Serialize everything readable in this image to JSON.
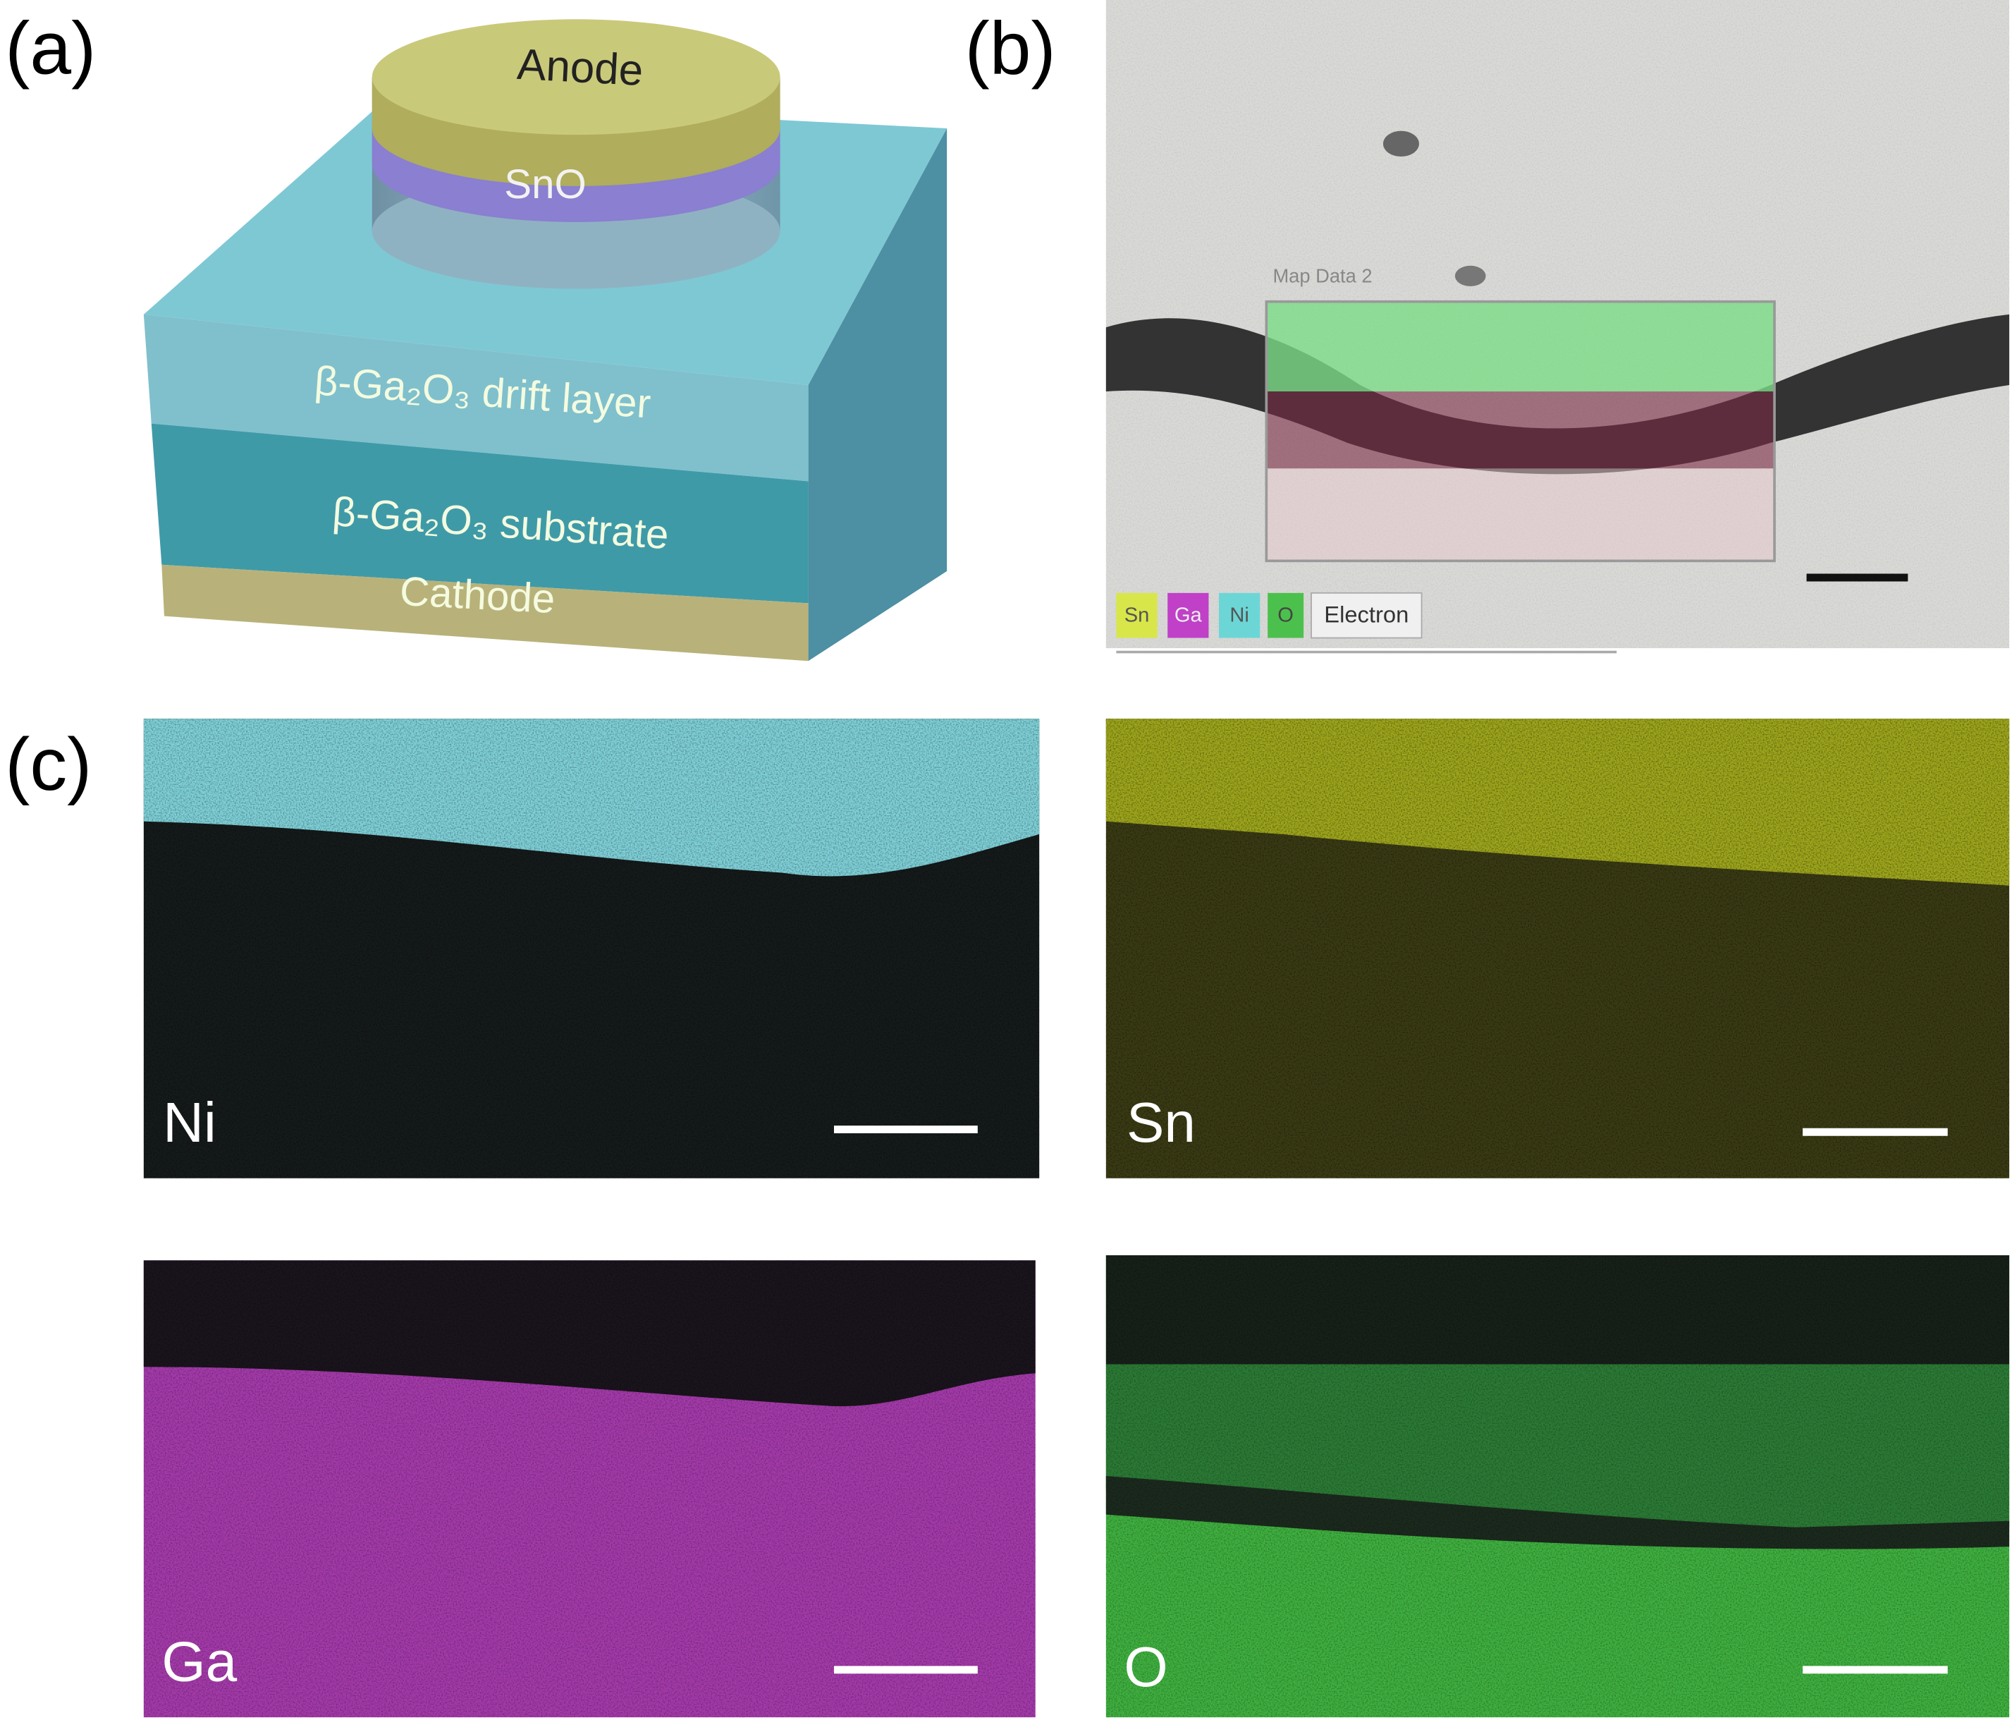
{
  "panel_a": {
    "label": "(a)",
    "layers": {
      "anode": "Anode",
      "sno": "SnO",
      "drift": "β-Ga₂O₃ drift layer",
      "substrate": "β-Ga₂O₃ substrate",
      "cathode": "Cathode"
    }
  },
  "panel_b": {
    "label": "(b)",
    "map_title": "Map Data 2",
    "legend": [
      "Sn",
      "Ga",
      "Ni",
      "O",
      "Electron"
    ]
  },
  "panel_c": {
    "label": "(c)",
    "maps": [
      "Ni",
      "Sn",
      "Ga",
      "O"
    ]
  }
}
